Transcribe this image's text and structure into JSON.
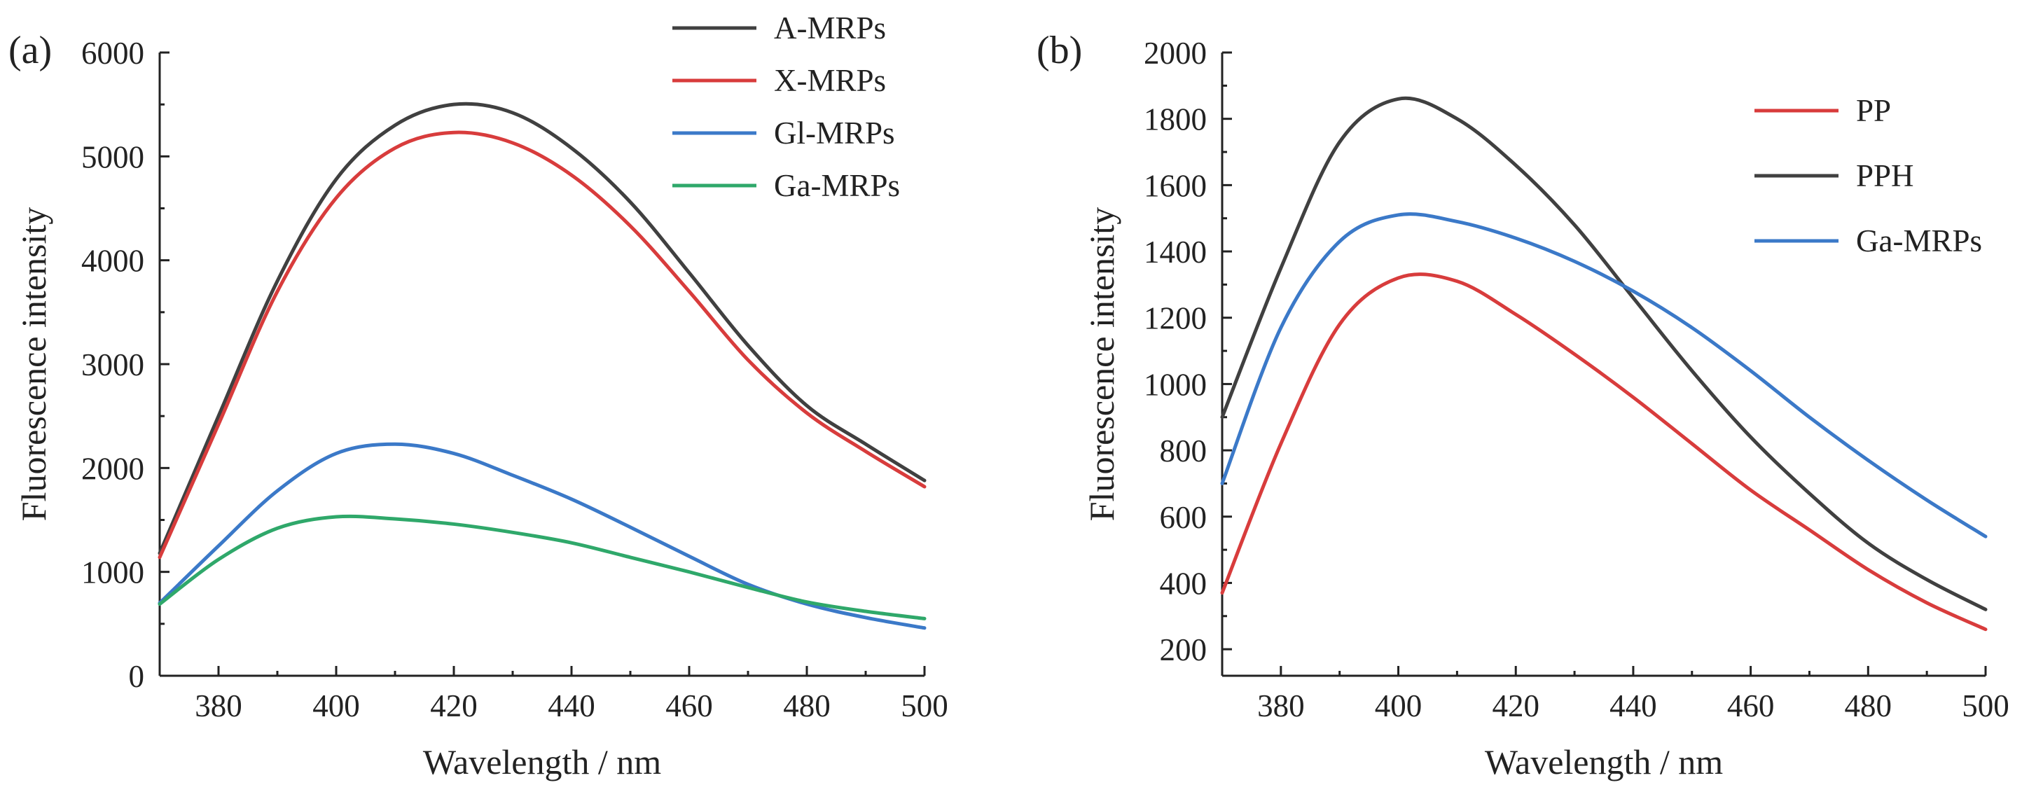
{
  "chart_data": [
    {
      "panel_label": "(a)",
      "type": "line",
      "xlabel": "Wavelength / nm",
      "ylabel": "Fluorescence intensity",
      "xlim": [
        370,
        500
      ],
      "ylim": [
        0,
        6000
      ],
      "xticks": [
        380,
        400,
        420,
        440,
        460,
        480,
        500
      ],
      "yticks": [
        0,
        1000,
        2000,
        3000,
        4000,
        5000,
        6000
      ],
      "legend_position": "top-right",
      "x": [
        370,
        380,
        390,
        400,
        410,
        420,
        430,
        440,
        450,
        460,
        470,
        480,
        490,
        500
      ],
      "series": [
        {
          "name": "A-MRPs",
          "color": "#404040",
          "values": [
            1180,
            2500,
            3800,
            4780,
            5300,
            5500,
            5420,
            5080,
            4560,
            3880,
            3180,
            2600,
            2230,
            1880
          ]
        },
        {
          "name": "X-MRPs",
          "color": "#d83c3c",
          "values": [
            1140,
            2420,
            3700,
            4600,
            5080,
            5230,
            5130,
            4820,
            4330,
            3700,
            3040,
            2530,
            2160,
            1820
          ]
        },
        {
          "name": "Gl-MRPs",
          "color": "#3b79c8",
          "values": [
            700,
            1250,
            1780,
            2140,
            2230,
            2140,
            1930,
            1700,
            1430,
            1150,
            880,
            690,
            560,
            460
          ]
        },
        {
          "name": "Ga-MRPs",
          "color": "#2fa86a",
          "values": [
            690,
            1120,
            1420,
            1530,
            1510,
            1460,
            1380,
            1280,
            1140,
            1000,
            850,
            710,
            620,
            550
          ]
        }
      ]
    },
    {
      "panel_label": "(b)",
      "type": "line",
      "xlabel": "Wavelength / nm",
      "ylabel": "Fluorescence intensity",
      "xlim": [
        370,
        500
      ],
      "ylim": [
        120,
        2000
      ],
      "xticks": [
        380,
        400,
        420,
        440,
        460,
        480,
        500
      ],
      "yticks": [
        200,
        400,
        600,
        800,
        1000,
        1200,
        1400,
        1600,
        1800,
        2000
      ],
      "legend_position": "top-right",
      "x": [
        370,
        380,
        390,
        400,
        410,
        420,
        430,
        440,
        450,
        460,
        470,
        480,
        490,
        500
      ],
      "series": [
        {
          "name": "PP",
          "color": "#d83c3c",
          "values": [
            370,
            820,
            1180,
            1320,
            1310,
            1210,
            1090,
            960,
            820,
            680,
            560,
            440,
            340,
            260
          ]
        },
        {
          "name": "PPH",
          "color": "#404040",
          "values": [
            900,
            1350,
            1730,
            1860,
            1800,
            1660,
            1480,
            1260,
            1040,
            840,
            670,
            520,
            410,
            320
          ]
        },
        {
          "name": "Ga-MRPs",
          "color": "#3b79c8",
          "values": [
            700,
            1170,
            1430,
            1510,
            1490,
            1440,
            1370,
            1280,
            1170,
            1040,
            900,
            770,
            650,
            540
          ]
        }
      ]
    }
  ]
}
